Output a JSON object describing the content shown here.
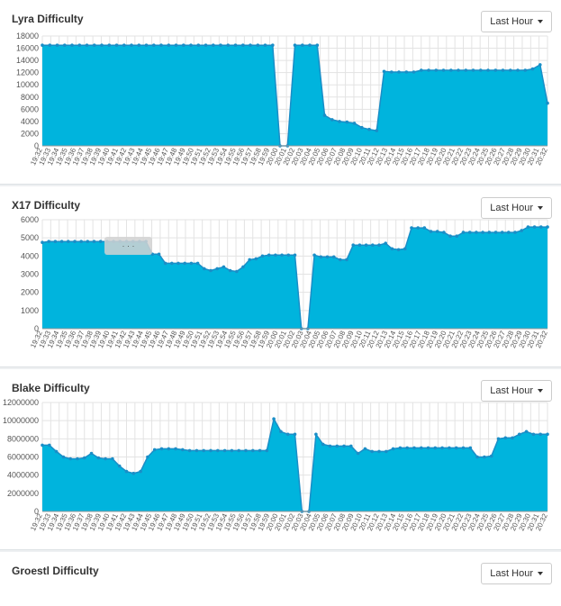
{
  "range_label": "Last Hour",
  "x_ticks": [
    "19:32",
    "19:33",
    "19:34",
    "19:35",
    "19:36",
    "19:37",
    "19:38",
    "19:39",
    "19:40",
    "19:41",
    "19:42",
    "19:43",
    "19:44",
    "19:45",
    "19:46",
    "19:47",
    "19:48",
    "19:49",
    "19:50",
    "19:51",
    "19:52",
    "19:53",
    "19:54",
    "19:55",
    "19:56",
    "19:57",
    "19:58",
    "19:59",
    "20:00",
    "20:01",
    "20:02",
    "20:03",
    "20:04",
    "20:05",
    "20:06",
    "20:07",
    "20:08",
    "20:09",
    "20:10",
    "20:11",
    "20:12",
    "20:13",
    "20:14",
    "20:15",
    "20:16",
    "20:17",
    "20:18",
    "20:19",
    "20:20",
    "20:21",
    "20:22",
    "20:23",
    "20:24",
    "20:25",
    "20:26",
    "20:27",
    "20:28",
    "20:29",
    "20:30",
    "20:31",
    "20:32"
  ],
  "colors": {
    "fill": "#00b4dd",
    "stroke": "#1a8ec7",
    "grid": "#e3e3e3",
    "axis": "#555555"
  },
  "chart_data": [
    {
      "type": "area",
      "title": "Lyra Difficulty",
      "ylim": [
        0,
        18000
      ],
      "yticks": [
        0,
        2000,
        4000,
        6000,
        8000,
        10000,
        12000,
        14000,
        16000,
        18000
      ],
      "grid": true,
      "values": [
        16500,
        16500,
        16500,
        16500,
        16500,
        16500,
        16500,
        16500,
        16500,
        16500,
        16500,
        16500,
        16500,
        16500,
        16500,
        16500,
        16500,
        16500,
        16500,
        16500,
        16500,
        16500,
        16500,
        16500,
        16500,
        16500,
        16500,
        16500,
        16500,
        16500,
        16500,
        16500,
        0,
        0,
        16500,
        16500,
        16500,
        16500,
        5000,
        4300,
        4000,
        3900,
        3700,
        3000,
        2700,
        2500,
        12200,
        12100,
        12100,
        12100,
        12100,
        12400,
        12400,
        12400,
        12400,
        12400,
        12400,
        12400,
        12400,
        12400,
        12400,
        12400,
        12400,
        12400,
        12400,
        12400,
        12600,
        13300,
        7000
      ]
    },
    {
      "type": "area",
      "title": "X17 Difficulty",
      "ylim": [
        0,
        6000
      ],
      "yticks": [
        0,
        1000,
        2000,
        3000,
        4000,
        5000,
        6000
      ],
      "grid": true,
      "values": [
        4750,
        4800,
        4800,
        4800,
        4800,
        4800,
        4800,
        4800,
        4800,
        4800,
        4800,
        4800,
        4800,
        4800,
        4800,
        4800,
        4800,
        4100,
        4100,
        3600,
        3600,
        3600,
        3600,
        3600,
        3600,
        3300,
        3200,
        3300,
        3400,
        3200,
        3150,
        3400,
        3800,
        3850,
        4000,
        4050,
        4050,
        4050,
        4050,
        4050,
        0,
        0,
        4050,
        3950,
        3950,
        3950,
        3800,
        3800,
        4600,
        4600,
        4600,
        4600,
        4600,
        4700,
        4400,
        4350,
        4400,
        5550,
        5550,
        5550,
        5350,
        5350,
        5300,
        5100,
        5100,
        5300,
        5300,
        5300,
        5300,
        5300,
        5300,
        5300,
        5300,
        5300,
        5400,
        5600,
        5600,
        5600,
        5600
      ]
    },
    {
      "type": "area",
      "title": "Blake Difficulty",
      "ylim": [
        0,
        12000000
      ],
      "yticks": [
        0,
        2000000,
        4000000,
        6000000,
        8000000,
        10000000,
        12000000
      ],
      "grid": true,
      "values": [
        7300000,
        7300000,
        6600000,
        6000000,
        5800000,
        5800000,
        5900000,
        6400000,
        5900000,
        5800000,
        5800000,
        5000000,
        4400000,
        4200000,
        4400000,
        6000000,
        6800000,
        6900000,
        6900000,
        6900000,
        6800000,
        6700000,
        6700000,
        6700000,
        6700000,
        6700000,
        6700000,
        6700000,
        6700000,
        6700000,
        6700000,
        6700000,
        6700000,
        10200000,
        8800000,
        8500000,
        8500000,
        0,
        0,
        8500000,
        7400000,
        7200000,
        7200000,
        7200000,
        7200000,
        6400000,
        6900000,
        6600000,
        6600000,
        6600000,
        6900000,
        7000000,
        7000000,
        7000000,
        7000000,
        7000000,
        7000000,
        7000000,
        7000000,
        7000000,
        7000000,
        7000000,
        6000000,
        6000000,
        6100000,
        8000000,
        8100000,
        8100000,
        8500000,
        8800000,
        8500000,
        8500000,
        8500000
      ]
    },
    {
      "type": "area",
      "title": "Groestl Difficulty",
      "values": []
    }
  ],
  "tooltip_text": "· · ·"
}
